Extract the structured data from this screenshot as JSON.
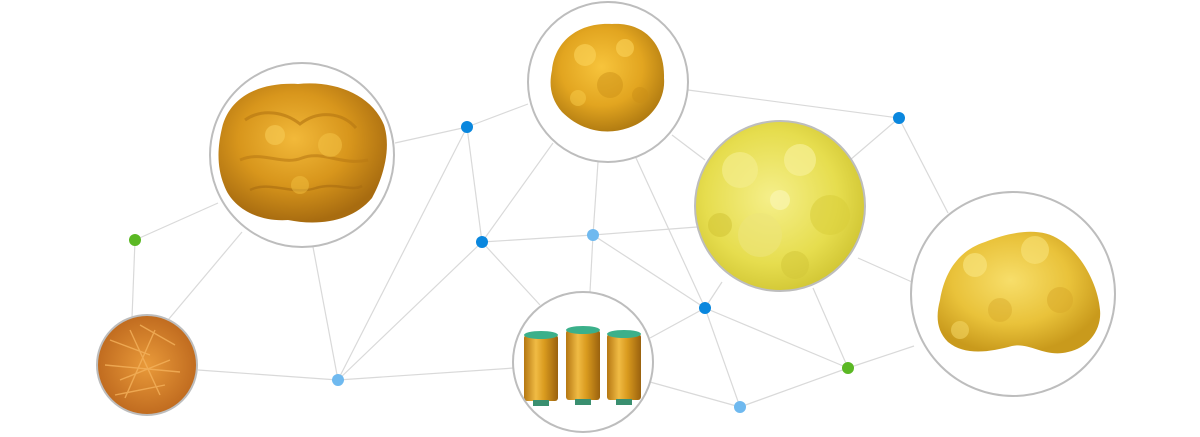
{
  "colors": {
    "background": "#ffffff",
    "line": "#d9d9d9",
    "circle_border": "#bdbdbd",
    "node_blue": "#0a87de",
    "node_light_blue": "#6fb9ef",
    "node_green": "#5bb824",
    "yarn_bobbin_top": "#3bb08a",
    "yarn_gold": "#d99a1e"
  },
  "images": [
    {
      "id": "crumbly-yellow-fiber",
      "icon": "fiber-clump-image",
      "tone": "amber"
    },
    {
      "id": "sponge-yellow-fiber",
      "icon": "fiber-clump-image",
      "tone": "gold"
    },
    {
      "id": "fluffy-pale-yellow-fiber",
      "icon": "fiber-clump-image",
      "tone": "pale-yellow"
    },
    {
      "id": "chunky-yellow-fiber",
      "icon": "fiber-clump-image",
      "tone": "yellow"
    },
    {
      "id": "chopped-orange-fiber",
      "icon": "chopped-fiber-image",
      "tone": "orange"
    },
    {
      "id": "gold-yarn-spools",
      "icon": "yarn-spool-image",
      "tone": "gold"
    }
  ]
}
